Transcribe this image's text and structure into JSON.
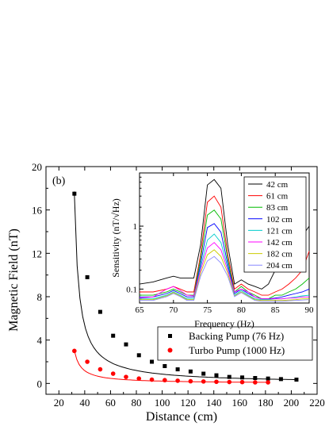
{
  "chart_data": [
    {
      "type": "scatter",
      "panel_label": "(b)",
      "xlabel": "Distance (cm)",
      "ylabel": "Magnetic Field (nT)",
      "xlim": [
        10,
        220
      ],
      "ylim": [
        -1,
        20
      ],
      "xticks": [
        "20",
        "40",
        "60",
        "80",
        "100",
        "120",
        "140",
        "160",
        "180",
        "200",
        "220"
      ],
      "yticks": [
        "0",
        "4",
        "8",
        "12",
        "16",
        "20"
      ],
      "legend_position": "bottom-right",
      "fit_lines": true,
      "error_bars": true,
      "series": [
        {
          "name": "Backing Pump (76 Hz)",
          "marker": "square",
          "color": "#000000",
          "x": [
            32,
            42,
            52,
            62,
            72,
            82,
            92,
            102,
            112,
            122,
            132,
            142,
            152,
            162,
            172,
            182,
            192,
            204
          ],
          "y": [
            17.5,
            9.8,
            6.6,
            4.4,
            3.6,
            2.6,
            2.0,
            1.6,
            1.3,
            1.1,
            0.9,
            0.75,
            0.6,
            0.55,
            0.5,
            0.45,
            0.4,
            0.35
          ],
          "err": [
            0.2,
            0.15,
            0.15,
            0.15,
            0.15,
            0.12,
            0.1,
            0.1,
            0.1,
            0.1,
            0.1,
            0.08,
            0.08,
            0.08,
            0.08,
            0.08,
            0.08,
            0.08
          ]
        },
        {
          "name": "Turbo Pump (1000 Hz)",
          "marker": "circle",
          "color": "#ff0000",
          "x": [
            32,
            42,
            52,
            62,
            72,
            82,
            92,
            102,
            112,
            122,
            132,
            142,
            152,
            162,
            172,
            182
          ],
          "y": [
            3.0,
            2.0,
            1.3,
            0.9,
            0.6,
            0.45,
            0.35,
            0.3,
            0.25,
            0.2,
            0.18,
            0.15,
            0.13,
            0.12,
            0.1,
            0.1
          ],
          "err": [
            0.15,
            0.15,
            0.12,
            0.1,
            0.08,
            0.08,
            0.08,
            0.08,
            0.06,
            0.06,
            0.06,
            0.06,
            0.06,
            0.06,
            0.06,
            0.06
          ]
        }
      ]
    },
    {
      "type": "line",
      "xlabel": "Frequency (Hz)",
      "ylabel": "Sensitivity (nT/√Hz)",
      "xlim": [
        65,
        90
      ],
      "ylim": [
        0.06,
        7
      ],
      "y_scale": "log",
      "xticks": [
        "65",
        "70",
        "75",
        "80",
        "85",
        "90"
      ],
      "yticks": [
        "0.1",
        "1"
      ],
      "legend_position": "top-right",
      "x": [
        65,
        67,
        69,
        70,
        71,
        72,
        73,
        74,
        75,
        76,
        77,
        78,
        79,
        80,
        81,
        82,
        83,
        84,
        85,
        86,
        87,
        88,
        89,
        90
      ],
      "series": [
        {
          "name": "42 cm",
          "color": "#000000",
          "values": [
            0.12,
            0.13,
            0.15,
            0.16,
            0.15,
            0.15,
            0.15,
            0.5,
            4.5,
            5.5,
            4.0,
            0.5,
            0.12,
            0.14,
            0.12,
            0.11,
            0.1,
            0.12,
            0.2,
            0.3,
            0.4,
            0.5,
            0.7,
            1.0
          ]
        },
        {
          "name": "61 cm",
          "color": "#ff0000",
          "values": [
            0.09,
            0.09,
            0.1,
            0.11,
            0.1,
            0.09,
            0.09,
            0.35,
            2.4,
            3.0,
            2.0,
            0.35,
            0.1,
            0.12,
            0.1,
            0.09,
            0.08,
            0.08,
            0.09,
            0.1,
            0.12,
            0.15,
            0.2,
            0.4
          ]
        },
        {
          "name": "83 cm",
          "color": "#00bb00",
          "values": [
            0.08,
            0.08,
            0.09,
            0.1,
            0.09,
            0.08,
            0.08,
            0.3,
            1.5,
            1.8,
            1.3,
            0.3,
            0.09,
            0.11,
            0.09,
            0.08,
            0.07,
            0.07,
            0.08,
            0.08,
            0.09,
            0.1,
            0.12,
            0.15
          ]
        },
        {
          "name": "102 cm",
          "color": "#0000ff",
          "values": [
            0.075,
            0.075,
            0.085,
            0.095,
            0.085,
            0.075,
            0.075,
            0.25,
            0.95,
            1.1,
            0.8,
            0.25,
            0.085,
            0.1,
            0.085,
            0.075,
            0.07,
            0.07,
            0.072,
            0.075,
            0.08,
            0.085,
            0.09,
            0.1
          ]
        },
        {
          "name": "121 cm",
          "color": "#00cccc",
          "values": [
            0.07,
            0.07,
            0.08,
            0.09,
            0.08,
            0.07,
            0.07,
            0.22,
            0.6,
            0.75,
            0.55,
            0.22,
            0.08,
            0.095,
            0.08,
            0.07,
            0.068,
            0.068,
            0.07,
            0.07,
            0.072,
            0.075,
            0.078,
            0.08
          ]
        },
        {
          "name": "142 cm",
          "color": "#ff00ff",
          "values": [
            0.072,
            0.075,
            0.1,
            0.11,
            0.095,
            0.08,
            0.078,
            0.2,
            0.45,
            0.55,
            0.42,
            0.2,
            0.09,
            0.1,
            0.09,
            0.075,
            0.07,
            0.07,
            0.07,
            0.07,
            0.072,
            0.072,
            0.075,
            0.075
          ]
        },
        {
          "name": "182 cm",
          "color": "#cccc00",
          "values": [
            0.068,
            0.068,
            0.078,
            0.088,
            0.078,
            0.068,
            0.068,
            0.18,
            0.35,
            0.42,
            0.33,
            0.18,
            0.078,
            0.09,
            0.078,
            0.068,
            0.066,
            0.066,
            0.066,
            0.066,
            0.067,
            0.068,
            0.07,
            0.07
          ]
        },
        {
          "name": "204 cm",
          "color": "#8888ff",
          "values": [
            0.066,
            0.066,
            0.076,
            0.085,
            0.076,
            0.066,
            0.066,
            0.16,
            0.28,
            0.33,
            0.26,
            0.16,
            0.076,
            0.088,
            0.076,
            0.066,
            0.064,
            0.064,
            0.064,
            0.064,
            0.065,
            0.066,
            0.067,
            0.068
          ]
        }
      ]
    }
  ]
}
